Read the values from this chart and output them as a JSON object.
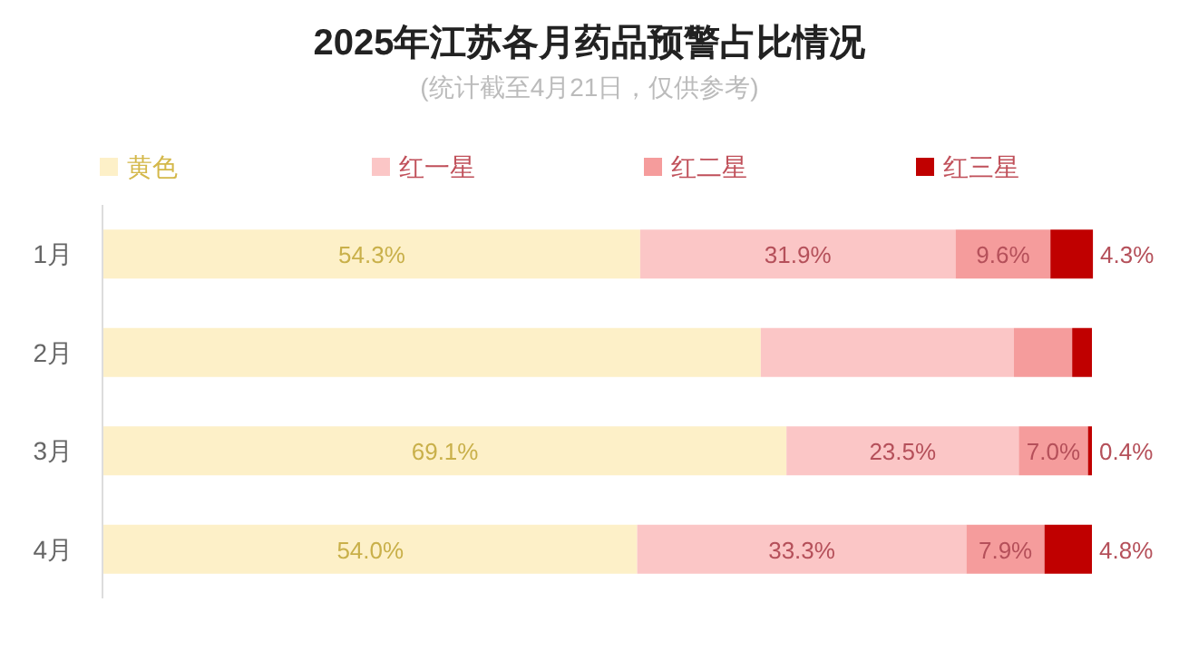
{
  "chart_data": {
    "type": "bar",
    "orientation": "horizontal",
    "stacked": true,
    "title": "2025年江苏各月药品预警占比情况",
    "subtitle": "(统计截至4月21日，仅供参考)",
    "categories": [
      "1月",
      "2月",
      "3月",
      "4月"
    ],
    "xlim": [
      0,
      100
    ],
    "legend": "top",
    "series": [
      {
        "name": "黄色",
        "color": "#fdf0c8",
        "values": [
          54.3,
          66.5,
          69.1,
          54.0
        ],
        "value_labels": [
          "54.3%",
          null,
          "69.1%",
          "54.0%"
        ]
      },
      {
        "name": "红一星",
        "color": "#fbc6c6",
        "values": [
          31.9,
          25.6,
          23.5,
          33.3
        ],
        "value_labels": [
          "31.9%",
          null,
          "23.5%",
          "33.3%"
        ]
      },
      {
        "name": "红二星",
        "color": "#f59c9c",
        "values": [
          9.6,
          5.9,
          7.0,
          7.9
        ],
        "value_labels": [
          "9.6%",
          null,
          "7.0%",
          "7.9%"
        ]
      },
      {
        "name": "红三星",
        "color": "#c00000",
        "values": [
          4.3,
          2.0,
          0.4,
          4.8
        ],
        "value_labels": [
          "4.3%",
          null,
          "0.4%",
          "4.8%"
        ]
      }
    ]
  }
}
